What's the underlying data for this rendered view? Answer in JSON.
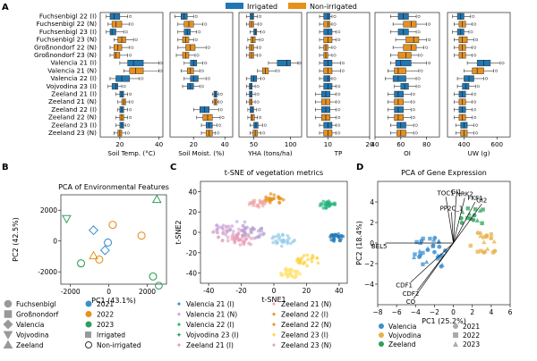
{
  "panels": {
    "A": "A",
    "B": "B",
    "C": "C",
    "D": "D"
  },
  "colors": {
    "irrigated": "#1f77b4",
    "non_irrigated": "#e8901c",
    "fuchsenbigl": "#888888",
    "grossnondorf": "#e8901c",
    "valencia": "#3a8fd0",
    "vojvodina": "#2ca05a",
    "zeeland": "#cc4a1a",
    "y2021": "#3a8fd0",
    "y2022": "#e8901c",
    "y2023": "#2ca05a"
  },
  "chart_data": [
    {
      "type": "boxplot",
      "legend": [
        "Irrigated",
        "Non-irrigated"
      ],
      "categories": [
        "Fuchsenbigl 22 (I)",
        "Fuchsenbigl 22 (N)",
        "Fuchsenbigl 23 (I)",
        "Fuchsenbigl 23 (N)",
        "Großnondorf 22 (N)",
        "Großnondorf 23 (N)",
        "Valencia 21 (I)",
        "Valencia 21 (N)",
        "Valencia 22 (I)",
        "Vojvodina 23 (I)",
        "Zeeland 21 (I)",
        "Zeeland 21 (N)",
        "Zeeland 22 (I)",
        "Zeeland 22 (N)",
        "Zeeland 23 (I)",
        "Zeeland 23 (N)"
      ],
      "groups": [
        "I",
        "N",
        "I",
        "N",
        "N",
        "N",
        "I",
        "N",
        "I",
        "I",
        "I",
        "N",
        "I",
        "N",
        "I",
        "N"
      ],
      "subplots": [
        {
          "xlabel": "Soil Temp. (°C)",
          "xlim": [
            10,
            42
          ],
          "ticks": [
            20,
            40
          ],
          "boxes": [
            [
              13,
              15,
              17,
              20,
              24
            ],
            [
              14,
              16,
              18,
              21,
              25
            ],
            [
              13,
              15,
              16,
              18,
              22
            ],
            [
              17,
              19,
              21,
              23,
              27
            ],
            [
              15,
              17,
              19,
              21,
              25
            ],
            [
              15,
              17,
              18,
              20,
              24
            ],
            [
              20,
              24,
              27,
              32,
              40
            ],
            [
              22,
              25,
              28,
              32,
              40
            ],
            [
              15,
              18,
              21,
              25,
              30
            ],
            [
              14,
              16,
              18,
              19,
              21
            ],
            [
              18,
              20,
              21,
              22,
              24
            ],
            [
              19,
              21,
              22,
              23,
              25
            ],
            [
              19,
              20,
              21,
              22,
              24
            ],
            [
              18,
              20,
              21,
              22,
              24
            ],
            [
              18,
              20,
              21,
              22,
              23
            ],
            [
              17,
              19,
              20,
              21,
              23
            ]
          ]
        },
        {
          "xlabel": "Soil Moist. (%)",
          "xlim": [
            5,
            45
          ],
          "ticks": [
            20,
            40
          ],
          "boxes": [
            [
              8,
              12,
              14,
              16,
              20
            ],
            [
              10,
              14,
              17,
              20,
              26
            ],
            [
              10,
              14,
              16,
              18,
              22
            ],
            [
              10,
              13,
              15,
              17,
              20
            ],
            [
              10,
              15,
              18,
              21,
              28
            ],
            [
              9,
              13,
              15,
              17,
              21
            ],
            [
              14,
              18,
              20,
              22,
              26
            ],
            [
              12,
              16,
              18,
              20,
              24
            ],
            [
              14,
              18,
              20,
              23,
              28
            ],
            [
              13,
              16,
              18,
              20,
              24
            ],
            [
              32,
              33,
              34,
              35,
              36
            ],
            [
              32,
              33,
              34,
              35,
              36
            ],
            [
              20,
              24,
              27,
              30,
              36
            ],
            [
              22,
              26,
              29,
              32,
              37
            ],
            [
              25,
              28,
              30,
              32,
              35
            ],
            [
              25,
              28,
              30,
              32,
              34
            ]
          ]
        },
        {
          "xlabel": "YHA (tons/ha)",
          "xlim": [
            30,
            115
          ],
          "ticks": [
            50,
            100
          ],
          "boxes": [
            [
              40,
              45,
              48,
              50,
              55
            ],
            [
              40,
              44,
              47,
              50,
              56
            ],
            [
              45,
              50,
              52,
              54,
              60
            ],
            [
              42,
              46,
              49,
              52,
              58
            ],
            [
              40,
              44,
              47,
              50,
              55
            ],
            [
              40,
              44,
              47,
              50,
              55
            ],
            [
              70,
              82,
              95,
              100,
              110
            ],
            [
              55,
              62,
              66,
              70,
              80
            ],
            [
              40,
              46,
              50,
              54,
              60
            ],
            [
              40,
              44,
              46,
              48,
              52
            ],
            [
              40,
              44,
              46,
              48,
              52
            ],
            [
              40,
              44,
              46,
              48,
              52
            ],
            [
              42,
              45,
              48,
              50,
              54
            ],
            [
              42,
              46,
              48,
              51,
              55
            ],
            [
              45,
              50,
              53,
              56,
              62
            ],
            [
              45,
              49,
              52,
              55,
              60
            ]
          ]
        },
        {
          "xlabel": "TP",
          "xlim": [
            5,
            20
          ],
          "ticks": [
            10,
            20
          ],
          "boxes": [
            [
              8,
              9,
              10,
              10.5,
              11
            ],
            [
              8,
              9,
              10,
              10.5,
              11
            ],
            [
              8,
              9,
              10,
              11,
              12
            ],
            [
              8,
              9,
              10,
              11,
              12
            ],
            [
              8,
              9,
              9.5,
              10,
              11
            ],
            [
              8,
              9,
              9.5,
              10,
              11
            ],
            [
              8,
              9,
              10,
              11,
              13
            ],
            [
              8,
              9,
              10,
              11,
              13
            ],
            [
              8,
              9,
              10,
              10.5,
              11
            ],
            [
              8,
              9,
              10,
              11,
              12
            ],
            [
              7,
              8.5,
              9.5,
              10.5,
              12
            ],
            [
              7,
              8.5,
              9.5,
              10.5,
              12
            ],
            [
              7,
              8.5,
              9.5,
              10.5,
              12
            ],
            [
              7,
              8.5,
              9.5,
              10.5,
              12
            ],
            [
              8,
              9,
              10,
              11,
              12
            ],
            [
              8,
              9,
              10,
              11,
              12
            ]
          ]
        },
        {
          "xlabel": "OI",
          "xlim": [
            40,
            90
          ],
          "ticks": [
            40,
            60,
            80
          ],
          "boxes": [
            [
              52,
              58,
              62,
              66,
              72
            ],
            [
              54,
              62,
              68,
              72,
              80
            ],
            [
              52,
              58,
              62,
              66,
              72
            ],
            [
              56,
              64,
              70,
              74,
              80
            ],
            [
              54,
              62,
              68,
              72,
              78
            ],
            [
              52,
              58,
              64,
              68,
              74
            ],
            [
              52,
              56,
              60,
              68,
              80
            ],
            [
              50,
              55,
              58,
              64,
              74
            ],
            [
              48,
              54,
              58,
              64,
              72
            ],
            [
              55,
              60,
              63,
              66,
              72
            ],
            [
              50,
              55,
              58,
              62,
              68
            ],
            [
              50,
              55,
              58,
              62,
              68
            ],
            [
              50,
              55,
              58,
              62,
              68
            ],
            [
              50,
              55,
              58,
              62,
              68
            ],
            [
              52,
              57,
              60,
              64,
              70
            ],
            [
              52,
              57,
              60,
              64,
              70
            ]
          ]
        },
        {
          "xlabel": "UW (g)",
          "xlim": [
            300,
            680
          ],
          "ticks": [
            400,
            600
          ],
          "boxes": [
            [
              330,
              360,
              380,
              400,
              440
            ],
            [
              340,
              370,
              390,
              410,
              450
            ],
            [
              330,
              360,
              380,
              400,
              430
            ],
            [
              340,
              370,
              390,
              420,
              460
            ],
            [
              340,
              370,
              390,
              410,
              450
            ],
            [
              340,
              370,
              390,
              410,
              450
            ],
            [
              420,
              480,
              520,
              560,
              620
            ],
            [
              400,
              450,
              480,
              520,
              580
            ],
            [
              360,
              400,
              430,
              460,
              520
            ],
            [
              360,
              390,
              410,
              430,
              470
            ],
            [
              340,
              370,
              390,
              410,
              450
            ],
            [
              340,
              370,
              390,
              410,
              450
            ],
            [
              340,
              370,
              390,
              410,
              450
            ],
            [
              340,
              370,
              390,
              410,
              450
            ],
            [
              350,
              380,
              400,
              420,
              460
            ],
            [
              350,
              380,
              400,
              420,
              460
            ]
          ]
        }
      ]
    },
    {
      "type": "scatter",
      "title": "PCA of Environmental Features",
      "xlabel": "PC1 (43.1%)",
      "ylabel": "PC2 (42.5%)",
      "xlim": [
        -2500,
        3000
      ],
      "ylim": [
        -2800,
        3000
      ],
      "xticks": [
        -2000,
        0,
        2000
      ],
      "yticks": [
        -2000,
        0,
        2000
      ],
      "points": [
        {
          "site": "fuchsenbigl",
          "year": "y2023",
          "irr": true,
          "x": 2600,
          "y": -2900
        },
        {
          "site": "zeeland",
          "year": "y2023",
          "irr": true,
          "x": 2500,
          "y": 2700
        },
        {
          "site": "vojvodina",
          "year": "y2023",
          "irr": true,
          "x": -2200,
          "y": 1450
        },
        {
          "site": "valencia",
          "year": "y2021",
          "irr": true,
          "x": -800,
          "y": 700
        },
        {
          "site": "grossnondorf",
          "year": "y2022",
          "irr": false,
          "x": 200,
          "y": 1050
        },
        {
          "site": "grossnondorf",
          "year": "y2022",
          "irr": false,
          "x": 1700,
          "y": 350
        },
        {
          "site": "valencia",
          "year": "y2021",
          "irr": false,
          "x": -50,
          "y": -100
        },
        {
          "site": "valencia",
          "year": "y2021",
          "irr": true,
          "x": -200,
          "y": -600
        },
        {
          "site": "zeeland",
          "year": "y2022",
          "irr": true,
          "x": -800,
          "y": -950
        },
        {
          "site": "grossnondorf",
          "year": "y2022",
          "irr": false,
          "x": -500,
          "y": -1200
        },
        {
          "site": "vojvodina",
          "year": "y2023",
          "irr": false,
          "x": -1450,
          "y": -1450
        },
        {
          "site": "zeeland",
          "year": "y2023",
          "irr": false,
          "x": 2300,
          "y": -2300
        }
      ]
    },
    {
      "type": "scatter",
      "title": "t-SNE of vegetation metrics",
      "xlabel": "t-SNE1",
      "ylabel": "t-SNE2",
      "xlim": [
        -45,
        45
      ],
      "ylim": [
        -50,
        50
      ],
      "xticks": [
        -40,
        -20,
        0,
        20,
        40
      ],
      "yticks": [
        -40,
        -20,
        0,
        20,
        40
      ],
      "clusters": [
        {
          "name": "Valencia 21 (I)",
          "x": 20,
          "y": -28,
          "spread": 6
        },
        {
          "name": "Valencia 21 (N)",
          "x": -28,
          "y": -2,
          "spread": 8
        },
        {
          "name": "Valencia 22 (I)",
          "x": 33,
          "y": 27,
          "spread": 4
        },
        {
          "name": "Vojvodina 23 (I)",
          "x": -25,
          "y": 5,
          "spread": 8
        },
        {
          "name": "Zeeland 21 (I)",
          "x": -20,
          "y": -8,
          "spread": 6
        },
        {
          "name": "Zeeland 21 (N)",
          "x": -12,
          "y": 0,
          "spread": 6
        },
        {
          "name": "Zeeland 22 (I)",
          "x": 0,
          "y": 33,
          "spread": 5
        },
        {
          "name": "Zeeland 22 (N)",
          "x": -10,
          "y": 28,
          "spread": 4
        },
        {
          "name": "Zeeland 23 (I)",
          "x": 5,
          "y": -8,
          "spread": 6
        },
        {
          "name": "Zeeland 23 (N)",
          "x": 10,
          "y": -40,
          "spread": 5
        },
        {
          "name": "Other",
          "x": 38,
          "y": -5,
          "spread": 4
        }
      ],
      "legend": [
        "Valencia 21 (I)",
        "Valencia 21 (N)",
        "Valencia 22 (I)",
        "Vojvodina 23 (I)",
        "Zeeland 21 (I)",
        "Zeeland 21 (N)",
        "Zeeland 22 (I)",
        "Zeeland 22 (N)",
        "Zeeland 23 (I)",
        "Zeeland 23 (N)"
      ]
    },
    {
      "type": "scatter",
      "title": "PCA of Gene Expression",
      "xlabel": "PC1 (25.2%)",
      "ylabel": "PC2 (18.4%)",
      "xlim": [
        -8,
        6
      ],
      "ylim": [
        -6,
        6
      ],
      "xticks": [
        -8,
        -6,
        -4,
        -2,
        0,
        2,
        4,
        6
      ],
      "yticks": [
        -4,
        -2,
        0,
        2,
        4
      ],
      "loadings": [
        {
          "gene": "TOC1",
          "x": -0.8,
          "y": 4.5
        },
        {
          "gene": "GI1",
          "x": 0.3,
          "y": 4.6
        },
        {
          "gene": "NRK2",
          "x": 1.2,
          "y": 4.4
        },
        {
          "gene": "FKF1",
          "x": 2.3,
          "y": 4.0
        },
        {
          "gene": "GI2",
          "x": 3.0,
          "y": 3.8
        },
        {
          "gene": "PP2C_1",
          "x": -0.2,
          "y": 3.0
        },
        {
          "gene": "BEL5",
          "x": -7.2,
          "y": 0.0
        },
        {
          "gene": "CDF1",
          "x": -4.5,
          "y": -3.8
        },
        {
          "gene": "CDF2",
          "x": -3.8,
          "y": -4.6
        },
        {
          "gene": "CO",
          "x": -4.2,
          "y": -5.4
        }
      ],
      "legend_sites": [
        "Valencia",
        "Vojvodina",
        "Zeeland"
      ],
      "legend_years": [
        "2021",
        "2022",
        "2023"
      ]
    }
  ],
  "legend_b": {
    "sites": [
      "Fuchsenbigl",
      "Großnondorf",
      "Valencia",
      "Vojvodina",
      "Zeeland"
    ],
    "years": [
      "2021",
      "2022",
      "2023"
    ],
    "irr": [
      "Irrigated",
      "Non-irrigated"
    ]
  }
}
